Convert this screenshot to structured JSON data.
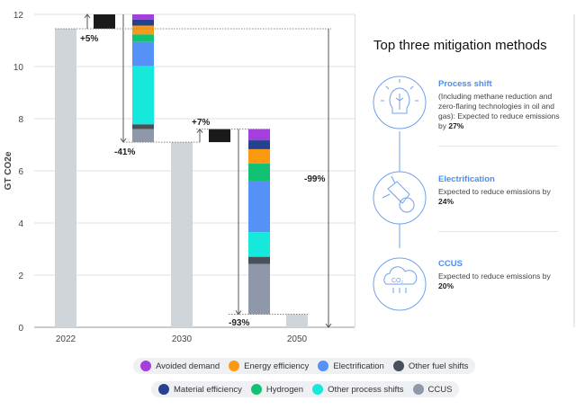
{
  "chart_data": {
    "type": "waterfall-bar",
    "ylabel": "GT CO2e",
    "ylim": [
      0,
      12
    ],
    "yticks": [
      0,
      2,
      4,
      6,
      8,
      10,
      12
    ],
    "grid": true,
    "categories": [
      "2022",
      "2030",
      "2050"
    ],
    "totals": {
      "2022": 11.45,
      "2030": 7.1,
      "2050": 0.5
    },
    "growth": [
      {
        "from": 11.45,
        "to": 12.0,
        "label": "+5%"
      },
      {
        "from": 7.1,
        "to": 7.6,
        "label": "+7%"
      }
    ],
    "reductions": [
      {
        "period": "2022-2030",
        "start": 12.0,
        "segments": {
          "Avoided demand": 0.2,
          "Material efficiency": 0.23,
          "Energy efficiency": 0.34,
          "Hydrogen": 0.29,
          "Electrification": 0.92,
          "Other process shifts": 2.24,
          "Other fuel shifts": 0.18,
          "CCUS": 0.5
        },
        "label": "-41%"
      },
      {
        "period": "2030-2050",
        "start": 7.6,
        "segments": {
          "Avoided demand": 0.43,
          "Material efficiency": 0.34,
          "Energy efficiency": 0.55,
          "Hydrogen": 0.66,
          "Electrification": 1.97,
          "Other process shifts": 0.95,
          "Other fuel shifts": 0.27,
          "CCUS": 1.93
        },
        "label": "-93%"
      }
    ],
    "overall_label": "-99%",
    "series": [
      {
        "name": "Avoided demand",
        "color": "#a43fdc"
      },
      {
        "name": "Material efficiency",
        "color": "#26418f"
      },
      {
        "name": "Energy efficiency",
        "color": "#fb9a12"
      },
      {
        "name": "Hydrogen",
        "color": "#13c175"
      },
      {
        "name": "Electrification",
        "color": "#5591f7"
      },
      {
        "name": "Other process shifts",
        "color": "#16e8dc"
      },
      {
        "name": "Other fuel shifts",
        "color": "#4a5059"
      },
      {
        "name": "CCUS",
        "color": "#8f98aa"
      }
    ],
    "total_color": "#d0d5da",
    "growth_color": "#1a1a1a"
  },
  "legend": {
    "row1": [
      "Avoided demand",
      "Energy efficiency",
      "Electrification",
      "Other fuel shifts"
    ],
    "row2": [
      "Material efficiency",
      "Hydrogen",
      "Other process shifts",
      "CCUS"
    ]
  },
  "panel": {
    "title": "Top three mitigation methods",
    "methods": [
      {
        "title": "Process shift",
        "text": "(Including methane reduction and zero-flaring technologies in oil and gas): Expected to reduce emissions by ",
        "value": "27%",
        "icon": "lightbulb-leaf-icon"
      },
      {
        "title": "Electrification",
        "text": "Expected to reduce emissions by ",
        "value": "24%",
        "icon": "plug-leaf-icon"
      },
      {
        "title": "CCUS",
        "text": "Expected to reduce emissions by ",
        "value": "20%",
        "icon": "co2-cloud-icon"
      }
    ]
  }
}
